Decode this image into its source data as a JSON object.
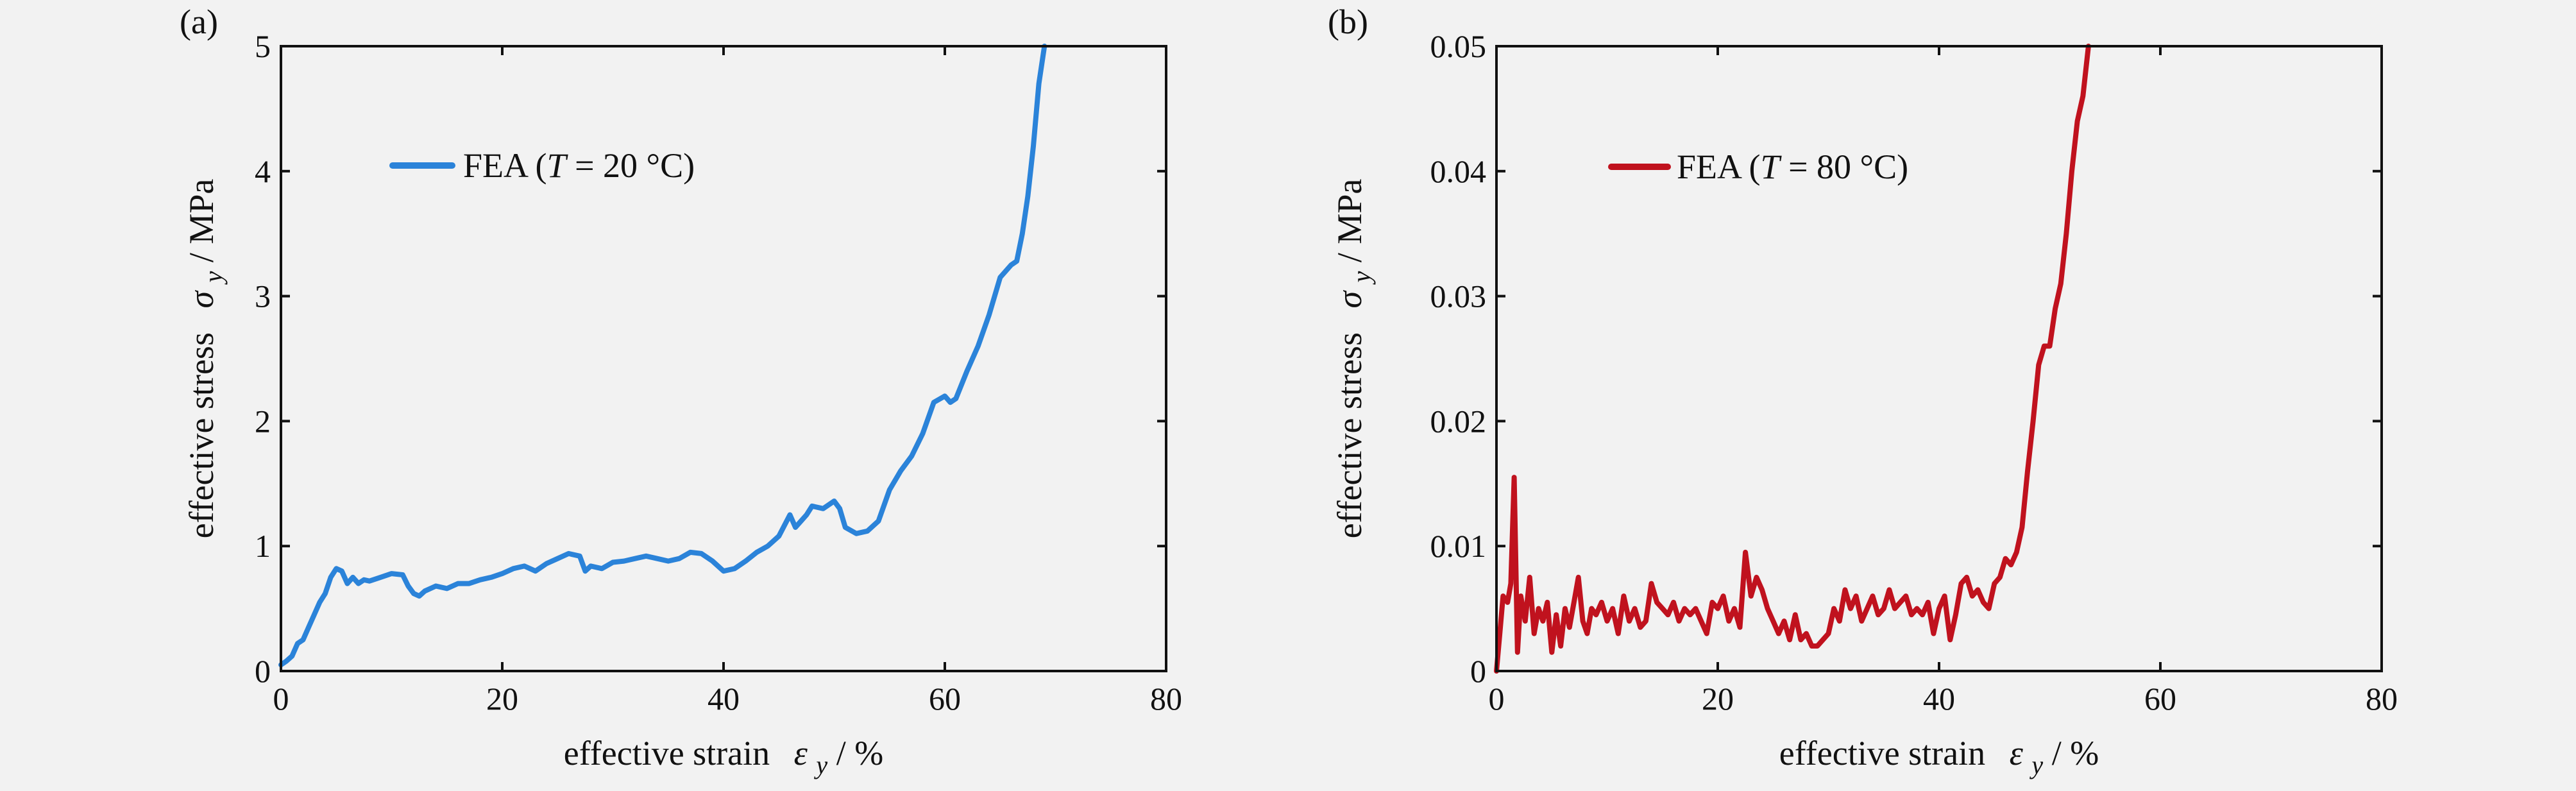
{
  "chart_data": [
    {
      "panel_label": "(a)",
      "type": "line",
      "xlabel_prefix": "effective strain",
      "xlabel_symbol": "ε",
      "xlabel_sub": "y",
      "xlabel_unit": " / %",
      "ylabel_prefix": "effective stress",
      "ylabel_symbol": "σ",
      "ylabel_sub": "y",
      "ylabel_unit": " / MPa",
      "xlim": [
        0,
        80
      ],
      "ylim": [
        0,
        5
      ],
      "xticks": [
        0,
        20,
        40,
        60,
        80
      ],
      "yticks": [
        0,
        1,
        2,
        3,
        4,
        5
      ],
      "ytick_labels": [
        "0",
        "1",
        "2",
        "3",
        "4",
        "5"
      ],
      "grid": false,
      "legend_position": "upper-left",
      "series": [
        {
          "name": "FEA (T = 20 °C)",
          "legend_pre": "FEA (",
          "legend_italic": "T",
          "legend_post": " = 20 °C)",
          "color": "#2b83d9",
          "points": [
            [
              0,
              0.05
            ],
            [
              0.5,
              0.08
            ],
            [
              1,
              0.12
            ],
            [
              1.5,
              0.22
            ],
            [
              2,
              0.25
            ],
            [
              2.5,
              0.35
            ],
            [
              3,
              0.45
            ],
            [
              3.5,
              0.55
            ],
            [
              4,
              0.62
            ],
            [
              4.5,
              0.75
            ],
            [
              5,
              0.82
            ],
            [
              5.5,
              0.8
            ],
            [
              6,
              0.7
            ],
            [
              6.5,
              0.75
            ],
            [
              7,
              0.7
            ],
            [
              7.5,
              0.73
            ],
            [
              8,
              0.72
            ],
            [
              9,
              0.75
            ],
            [
              10,
              0.78
            ],
            [
              11,
              0.77
            ],
            [
              11.5,
              0.68
            ],
            [
              12,
              0.62
            ],
            [
              12.5,
              0.6
            ],
            [
              13,
              0.64
            ],
            [
              14,
              0.68
            ],
            [
              15,
              0.66
            ],
            [
              16,
              0.7
            ],
            [
              17,
              0.7
            ],
            [
              18,
              0.73
            ],
            [
              19,
              0.75
            ],
            [
              20,
              0.78
            ],
            [
              21,
              0.82
            ],
            [
              22,
              0.84
            ],
            [
              23,
              0.8
            ],
            [
              24,
              0.86
            ],
            [
              25,
              0.9
            ],
            [
              26,
              0.94
            ],
            [
              27,
              0.92
            ],
            [
              27.5,
              0.8
            ],
            [
              28,
              0.84
            ],
            [
              29,
              0.82
            ],
            [
              30,
              0.87
            ],
            [
              31,
              0.88
            ],
            [
              32,
              0.9
            ],
            [
              33,
              0.92
            ],
            [
              34,
              0.9
            ],
            [
              35,
              0.88
            ],
            [
              36,
              0.9
            ],
            [
              37,
              0.95
            ],
            [
              38,
              0.94
            ],
            [
              39,
              0.88
            ],
            [
              40,
              0.8
            ],
            [
              41,
              0.82
            ],
            [
              42,
              0.88
            ],
            [
              43,
              0.95
            ],
            [
              44,
              1.0
            ],
            [
              45,
              1.08
            ],
            [
              46,
              1.25
            ],
            [
              46.5,
              1.15
            ],
            [
              47,
              1.2
            ],
            [
              47.5,
              1.25
            ],
            [
              48,
              1.32
            ],
            [
              49,
              1.3
            ],
            [
              50,
              1.36
            ],
            [
              50.5,
              1.3
            ],
            [
              51,
              1.15
            ],
            [
              52,
              1.1
            ],
            [
              53,
              1.12
            ],
            [
              54,
              1.2
            ],
            [
              55,
              1.45
            ],
            [
              56,
              1.6
            ],
            [
              57,
              1.72
            ],
            [
              58,
              1.9
            ],
            [
              59,
              2.15
            ],
            [
              60,
              2.2
            ],
            [
              60.5,
              2.15
            ],
            [
              61,
              2.18
            ],
            [
              62,
              2.4
            ],
            [
              63,
              2.6
            ],
            [
              64,
              2.85
            ],
            [
              65,
              3.15
            ],
            [
              66,
              3.25
            ],
            [
              66.5,
              3.28
            ],
            [
              67,
              3.5
            ],
            [
              67.5,
              3.8
            ],
            [
              68,
              4.2
            ],
            [
              68.5,
              4.7
            ],
            [
              69,
              5.0
            ]
          ]
        }
      ]
    },
    {
      "panel_label": "(b)",
      "type": "line",
      "xlabel_prefix": "effective strain",
      "xlabel_symbol": "ε",
      "xlabel_sub": "y",
      "xlabel_unit": " / %",
      "ylabel_prefix": "effective stress",
      "ylabel_symbol": "σ",
      "ylabel_sub": "y",
      "ylabel_unit": " / MPa",
      "xlim": [
        0,
        80
      ],
      "ylim": [
        0,
        0.05
      ],
      "xticks": [
        0,
        20,
        40,
        60,
        80
      ],
      "yticks": [
        0,
        0.01,
        0.02,
        0.03,
        0.04,
        0.05
      ],
      "ytick_labels": [
        "0",
        "0.01",
        "0.02",
        "0.03",
        "0.04",
        "0.05"
      ],
      "grid": false,
      "legend_position": "upper-left",
      "series": [
        {
          "name": "FEA (T = 80 °C)",
          "legend_pre": "FEA (",
          "legend_italic": "T",
          "legend_post": " = 80 °C)",
          "color": "#c0121e",
          "points": [
            [
              0,
              0.0
            ],
            [
              0.3,
              0.003
            ],
            [
              0.6,
              0.006
            ],
            [
              1,
              0.0055
            ],
            [
              1.3,
              0.007
            ],
            [
              1.6,
              0.0155
            ],
            [
              1.9,
              0.0015
            ],
            [
              2.2,
              0.006
            ],
            [
              2.6,
              0.004
            ],
            [
              3,
              0.0075
            ],
            [
              3.4,
              0.003
            ],
            [
              3.8,
              0.005
            ],
            [
              4.2,
              0.004
            ],
            [
              4.6,
              0.0055
            ],
            [
              5,
              0.0015
            ],
            [
              5.4,
              0.0045
            ],
            [
              5.8,
              0.002
            ],
            [
              6.2,
              0.005
            ],
            [
              6.6,
              0.0035
            ],
            [
              7,
              0.0055
            ],
            [
              7.4,
              0.0075
            ],
            [
              7.8,
              0.004
            ],
            [
              8.2,
              0.003
            ],
            [
              8.6,
              0.005
            ],
            [
              9,
              0.0045
            ],
            [
              9.5,
              0.0055
            ],
            [
              10,
              0.004
            ],
            [
              10.5,
              0.005
            ],
            [
              11,
              0.003
            ],
            [
              11.5,
              0.006
            ],
            [
              12,
              0.004
            ],
            [
              12.5,
              0.005
            ],
            [
              13,
              0.0035
            ],
            [
              13.5,
              0.004
            ],
            [
              14,
              0.007
            ],
            [
              14.5,
              0.0055
            ],
            [
              15,
              0.005
            ],
            [
              15.5,
              0.0045
            ],
            [
              16,
              0.0055
            ],
            [
              16.5,
              0.004
            ],
            [
              17,
              0.005
            ],
            [
              17.5,
              0.0045
            ],
            [
              18,
              0.005
            ],
            [
              18.5,
              0.004
            ],
            [
              19,
              0.003
            ],
            [
              19.5,
              0.0055
            ],
            [
              20,
              0.005
            ],
            [
              20.5,
              0.006
            ],
            [
              21,
              0.004
            ],
            [
              21.5,
              0.005
            ],
            [
              22,
              0.0035
            ],
            [
              22.5,
              0.0095
            ],
            [
              23,
              0.006
            ],
            [
              23.5,
              0.0075
            ],
            [
              24,
              0.0065
            ],
            [
              24.5,
              0.005
            ],
            [
              25,
              0.004
            ],
            [
              25.5,
              0.003
            ],
            [
              26,
              0.004
            ],
            [
              26.5,
              0.0025
            ],
            [
              27,
              0.0045
            ],
            [
              27.5,
              0.0025
            ],
            [
              28,
              0.003
            ],
            [
              28.5,
              0.002
            ],
            [
              29,
              0.002
            ],
            [
              29.5,
              0.0025
            ],
            [
              30,
              0.003
            ],
            [
              30.5,
              0.005
            ],
            [
              31,
              0.004
            ],
            [
              31.5,
              0.0065
            ],
            [
              32,
              0.005
            ],
            [
              32.5,
              0.006
            ],
            [
              33,
              0.004
            ],
            [
              33.5,
              0.005
            ],
            [
              34,
              0.006
            ],
            [
              34.5,
              0.0045
            ],
            [
              35,
              0.005
            ],
            [
              35.5,
              0.0065
            ],
            [
              36,
              0.005
            ],
            [
              36.5,
              0.0055
            ],
            [
              37,
              0.006
            ],
            [
              37.5,
              0.0045
            ],
            [
              38,
              0.005
            ],
            [
              38.5,
              0.0045
            ],
            [
              39,
              0.0055
            ],
            [
              39.5,
              0.003
            ],
            [
              40,
              0.005
            ],
            [
              40.5,
              0.006
            ],
            [
              41,
              0.0025
            ],
            [
              41.5,
              0.0045
            ],
            [
              42,
              0.007
            ],
            [
              42.5,
              0.0075
            ],
            [
              43,
              0.006
            ],
            [
              43.5,
              0.0065
            ],
            [
              44,
              0.0055
            ],
            [
              44.5,
              0.005
            ],
            [
              45,
              0.007
            ],
            [
              45.5,
              0.0075
            ],
            [
              46,
              0.009
            ],
            [
              46.5,
              0.0085
            ],
            [
              47,
              0.0095
            ],
            [
              47.5,
              0.0115
            ],
            [
              48,
              0.016
            ],
            [
              48.5,
              0.02
            ],
            [
              49,
              0.0245
            ],
            [
              49.5,
              0.026
            ],
            [
              50,
              0.026
            ],
            [
              50.5,
              0.029
            ],
            [
              51,
              0.031
            ],
            [
              51.5,
              0.035
            ],
            [
              52,
              0.04
            ],
            [
              52.5,
              0.044
            ],
            [
              53,
              0.046
            ],
            [
              53.5,
              0.05
            ]
          ]
        }
      ]
    }
  ]
}
